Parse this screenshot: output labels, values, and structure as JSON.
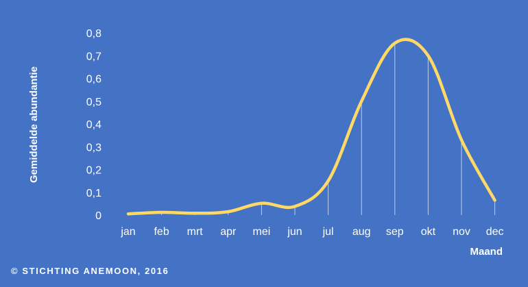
{
  "chart_data": {
    "type": "line",
    "title": "",
    "xlabel": "Maand",
    "ylabel": "Gemiddelde abundantie",
    "categories": [
      "jan",
      "feb",
      "mrt",
      "apr",
      "mei",
      "jun",
      "jul",
      "aug",
      "sep",
      "okt",
      "nov",
      "dec"
    ],
    "y_tick_labels": [
      "0",
      "0,1",
      "0,2",
      "0,3",
      "0,4",
      "0,5",
      "0,6",
      "0,7",
      "0,8"
    ],
    "ylim": [
      0,
      0.8
    ],
    "series": [
      {
        "values": [
          0.005,
          0.012,
          0.008,
          0.015,
          0.052,
          0.038,
          0.15,
          0.5,
          0.755,
          0.7,
          0.33,
          0.065
        ]
      }
    ],
    "grid": false,
    "drop_lines": true,
    "smooth": true,
    "colors": {
      "background": "#4472c4",
      "line": "#ffd966",
      "text": "#ffffff",
      "drop_line": "#dbe5f5"
    }
  },
  "footer": {
    "copyright": "© STICHTING ANEMOON, 2016"
  }
}
